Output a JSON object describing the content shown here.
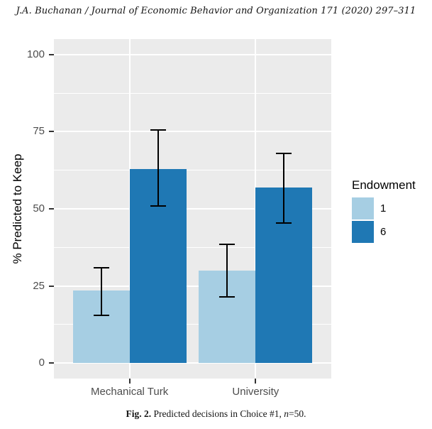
{
  "page": {
    "header": "J.A. Buchanan / Journal of Economic Behavior and Organization 171 (2020) 297–311",
    "caption": {
      "label": "Fig. 2.",
      "text": " Predicted decisions in Choice #1, ",
      "var": "n",
      "suffix": "=50."
    }
  },
  "chart_data": {
    "type": "bar",
    "title": "",
    "categories": [
      "Mechanical Turk",
      "University"
    ],
    "series": [
      {
        "name": "1",
        "color": "#A6CEE3",
        "values": [
          23.5,
          30
        ],
        "error_low": [
          15.5,
          21.5
        ],
        "error_high": [
          31,
          38.5
        ]
      },
      {
        "name": "6",
        "color": "#1F78B4",
        "values": [
          63,
          57
        ],
        "error_low": [
          51,
          45.5
        ],
        "error_high": [
          75.5,
          68
        ]
      }
    ],
    "xlabel": "",
    "ylabel": "% Predicted to Keep",
    "yticks": [
      0,
      25,
      50,
      75,
      100
    ],
    "ylim": [
      0,
      100
    ],
    "expansion": 0.05,
    "legend": {
      "title": "Endowment",
      "position": "right"
    },
    "style": {
      "panel_bg": "#EBEBEB",
      "grid_color": "#FFFFFF",
      "minor_grid": true,
      "error_bar_color": "#000000",
      "tick_mark_color": "#333333",
      "tick_label_color": "#4D4D4D"
    }
  }
}
